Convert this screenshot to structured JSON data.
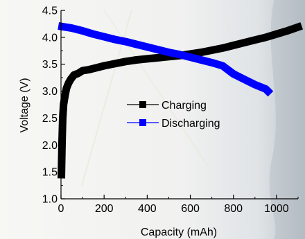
{
  "chart_data": {
    "type": "line",
    "title": "",
    "xlabel": "Capacity (mAh)",
    "ylabel": "Voltage (V)",
    "xlim": [
      0,
      1100
    ],
    "ylim": [
      1.0,
      4.5
    ],
    "xticks": [
      "0",
      "200",
      "400",
      "600",
      "800",
      "1000"
    ],
    "xtick_values": [
      0,
      200,
      400,
      600,
      800,
      1000
    ],
    "yticks": [
      "1.0",
      "1.5",
      "2.0",
      "2.5",
      "3.0",
      "3.5",
      "4.0",
      "4.5"
    ],
    "ytick_values": [
      1.0,
      1.5,
      2.0,
      2.5,
      3.0,
      3.5,
      4.0,
      4.5
    ],
    "grid": false,
    "legend_position": "center-right",
    "series": [
      {
        "name": "Charging",
        "color": "#000000",
        "marker": "square",
        "x": [
          2,
          5,
          8,
          12,
          18,
          25,
          35,
          45,
          60,
          80,
          100,
          130,
          160,
          200,
          250,
          300,
          350,
          400,
          450,
          500,
          550,
          600,
          650,
          700,
          750,
          800,
          850,
          900,
          950,
          1000,
          1050,
          1100
        ],
        "y": [
          1.45,
          2.1,
          2.5,
          2.75,
          2.9,
          3.05,
          3.15,
          3.22,
          3.3,
          3.33,
          3.38,
          3.4,
          3.43,
          3.47,
          3.51,
          3.55,
          3.58,
          3.6,
          3.62,
          3.64,
          3.66,
          3.69,
          3.72,
          3.76,
          3.8,
          3.85,
          3.9,
          3.95,
          4.0,
          4.06,
          4.12,
          4.19
        ]
      },
      {
        "name": "Discharging",
        "color": "#0000ff",
        "marker": "square",
        "x": [
          5,
          50,
          100,
          150,
          200,
          250,
          300,
          350,
          400,
          450,
          500,
          550,
          600,
          650,
          700,
          750,
          800,
          850,
          900,
          950,
          960
        ],
        "y": [
          4.2,
          4.17,
          4.12,
          4.06,
          4.01,
          3.96,
          3.92,
          3.87,
          3.82,
          3.77,
          3.72,
          3.68,
          3.63,
          3.58,
          3.53,
          3.47,
          3.32,
          3.22,
          3.12,
          3.04,
          3.0
        ]
      }
    ]
  }
}
